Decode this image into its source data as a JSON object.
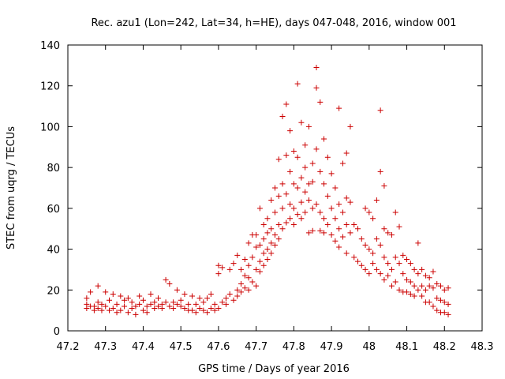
{
  "chart_data": {
    "type": "scatter",
    "title": "Rec. azu1 (Lon=242, Lat=34, h=HE), days 047-048, 2016, window 001",
    "xlabel": "GPS time / Days of year 2016",
    "ylabel": "STEC from uqrg / TECUs",
    "xlim": [
      47.2,
      48.3
    ],
    "ylim": [
      0,
      140
    ],
    "xticks": [
      "47.2",
      "47.3",
      "47.4",
      "47.5",
      "47.6",
      "47.7",
      "47.8",
      "47.9",
      "48",
      "48.1",
      "48.2",
      "48.3"
    ],
    "yticks": [
      "0",
      "20",
      "40",
      "60",
      "80",
      "100",
      "120",
      "140"
    ],
    "grid": false,
    "marker": "plus",
    "color": "#cc0000",
    "points": [
      [
        47.25,
        16
      ],
      [
        47.25,
        13
      ],
      [
        47.25,
        11
      ],
      [
        47.26,
        12
      ],
      [
        47.26,
        19
      ],
      [
        47.27,
        12
      ],
      [
        47.27,
        10
      ],
      [
        47.28,
        22
      ],
      [
        47.28,
        14
      ],
      [
        47.28,
        11
      ],
      [
        47.29,
        10
      ],
      [
        47.29,
        13
      ],
      [
        47.3,
        19
      ],
      [
        47.3,
        12
      ],
      [
        47.31,
        10
      ],
      [
        47.31,
        15
      ],
      [
        47.32,
        18
      ],
      [
        47.32,
        11
      ],
      [
        47.33,
        9
      ],
      [
        47.33,
        13
      ],
      [
        47.34,
        17
      ],
      [
        47.34,
        10
      ],
      [
        47.35,
        15
      ],
      [
        47.35,
        12
      ],
      [
        47.36,
        9
      ],
      [
        47.36,
        16
      ],
      [
        47.37,
        11
      ],
      [
        47.37,
        14
      ],
      [
        47.38,
        8
      ],
      [
        47.38,
        12
      ],
      [
        47.39,
        17
      ],
      [
        47.39,
        13
      ],
      [
        47.4,
        10
      ],
      [
        47.4,
        15
      ],
      [
        47.41,
        12
      ],
      [
        47.41,
        9
      ],
      [
        47.42,
        18
      ],
      [
        47.42,
        13
      ],
      [
        47.43,
        11
      ],
      [
        47.43,
        14
      ],
      [
        47.44,
        12
      ],
      [
        47.44,
        16
      ],
      [
        47.45,
        13
      ],
      [
        47.45,
        11
      ],
      [
        47.46,
        25
      ],
      [
        47.46,
        14
      ],
      [
        47.47,
        12
      ],
      [
        47.47,
        23
      ],
      [
        47.48,
        14
      ],
      [
        47.48,
        11
      ],
      [
        47.49,
        20
      ],
      [
        47.49,
        13
      ],
      [
        47.5,
        12
      ],
      [
        47.5,
        15
      ],
      [
        47.51,
        11
      ],
      [
        47.51,
        18
      ],
      [
        47.52,
        10
      ],
      [
        47.52,
        13
      ],
      [
        47.53,
        17
      ],
      [
        47.53,
        10
      ],
      [
        47.54,
        13
      ],
      [
        47.54,
        9
      ],
      [
        47.55,
        16
      ],
      [
        47.55,
        11
      ],
      [
        47.56,
        10
      ],
      [
        47.56,
        14
      ],
      [
        47.57,
        9
      ],
      [
        47.57,
        16
      ],
      [
        47.58,
        11
      ],
      [
        47.58,
        18
      ],
      [
        47.59,
        10
      ],
      [
        47.59,
        13
      ],
      [
        47.6,
        32
      ],
      [
        47.6,
        28
      ],
      [
        47.6,
        11
      ],
      [
        47.61,
        14
      ],
      [
        47.61,
        31
      ],
      [
        47.62,
        16
      ],
      [
        47.62,
        13
      ],
      [
        47.63,
        30
      ],
      [
        47.63,
        18
      ],
      [
        47.64,
        15
      ],
      [
        47.64,
        33
      ],
      [
        47.65,
        20
      ],
      [
        47.65,
        17
      ],
      [
        47.65,
        37
      ],
      [
        47.66,
        23
      ],
      [
        47.66,
        19
      ],
      [
        47.66,
        30
      ],
      [
        47.67,
        27
      ],
      [
        47.67,
        21
      ],
      [
        47.67,
        35
      ],
      [
        47.68,
        32
      ],
      [
        47.68,
        26
      ],
      [
        47.68,
        20
      ],
      [
        47.68,
        43
      ],
      [
        47.69,
        36
      ],
      [
        47.69,
        24
      ],
      [
        47.69,
        47
      ],
      [
        47.7,
        41
      ],
      [
        47.7,
        30
      ],
      [
        47.7,
        22
      ],
      [
        47.7,
        47
      ],
      [
        47.71,
        60
      ],
      [
        47.71,
        42
      ],
      [
        47.71,
        34
      ],
      [
        47.71,
        29
      ],
      [
        47.72,
        52
      ],
      [
        47.72,
        45
      ],
      [
        47.72,
        38
      ],
      [
        47.72,
        32
      ],
      [
        47.73,
        55
      ],
      [
        47.73,
        48
      ],
      [
        47.73,
        40
      ],
      [
        47.73,
        35
      ],
      [
        47.74,
        64
      ],
      [
        47.74,
        50
      ],
      [
        47.74,
        43
      ],
      [
        47.74,
        38
      ],
      [
        47.75,
        70
      ],
      [
        47.75,
        58
      ],
      [
        47.75,
        47
      ],
      [
        47.75,
        42
      ],
      [
        47.76,
        84
      ],
      [
        47.76,
        66
      ],
      [
        47.76,
        52
      ],
      [
        47.76,
        45
      ],
      [
        47.77,
        105
      ],
      [
        47.77,
        72
      ],
      [
        47.77,
        60
      ],
      [
        47.77,
        50
      ],
      [
        47.78,
        111
      ],
      [
        47.78,
        86
      ],
      [
        47.78,
        67
      ],
      [
        47.78,
        53
      ],
      [
        47.79,
        98
      ],
      [
        47.79,
        78
      ],
      [
        47.79,
        62
      ],
      [
        47.79,
        55
      ],
      [
        47.8,
        88
      ],
      [
        47.8,
        72
      ],
      [
        47.8,
        60
      ],
      [
        47.8,
        52
      ],
      [
        47.81,
        121
      ],
      [
        47.81,
        85
      ],
      [
        47.81,
        70
      ],
      [
        47.81,
        57
      ],
      [
        47.82,
        102
      ],
      [
        47.82,
        75
      ],
      [
        47.82,
        63
      ],
      [
        47.82,
        55
      ],
      [
        47.83,
        91
      ],
      [
        47.83,
        80
      ],
      [
        47.83,
        68
      ],
      [
        47.83,
        58
      ],
      [
        47.84,
        100
      ],
      [
        47.84,
        72
      ],
      [
        47.84,
        64
      ],
      [
        47.84,
        48
      ],
      [
        47.85,
        82
      ],
      [
        47.85,
        73
      ],
      [
        47.85,
        60
      ],
      [
        47.85,
        49
      ],
      [
        47.86,
        129
      ],
      [
        47.86,
        119
      ],
      [
        47.86,
        89
      ],
      [
        47.86,
        62
      ],
      [
        47.87,
        112
      ],
      [
        47.87,
        78
      ],
      [
        47.87,
        58
      ],
      [
        47.87,
        49
      ],
      [
        47.88,
        94
      ],
      [
        47.88,
        72
      ],
      [
        47.88,
        55
      ],
      [
        47.88,
        48
      ],
      [
        47.89,
        85
      ],
      [
        47.89,
        66
      ],
      [
        47.89,
        52
      ],
      [
        47.9,
        77
      ],
      [
        47.9,
        60
      ],
      [
        47.9,
        47
      ],
      [
        47.91,
        70
      ],
      [
        47.91,
        55
      ],
      [
        47.91,
        44
      ],
      [
        47.92,
        109
      ],
      [
        47.92,
        62
      ],
      [
        47.92,
        50
      ],
      [
        47.92,
        41
      ],
      [
        47.93,
        82
      ],
      [
        47.93,
        58
      ],
      [
        47.93,
        46
      ],
      [
        47.94,
        87
      ],
      [
        47.94,
        65
      ],
      [
        47.94,
        52
      ],
      [
        47.94,
        38
      ],
      [
        47.95,
        100
      ],
      [
        47.95,
        63
      ],
      [
        47.95,
        48
      ],
      [
        47.96,
        52
      ],
      [
        47.96,
        36
      ],
      [
        47.97,
        50
      ],
      [
        47.97,
        34
      ],
      [
        47.98,
        45
      ],
      [
        47.98,
        32
      ],
      [
        47.99,
        60
      ],
      [
        47.99,
        42
      ],
      [
        47.99,
        30
      ],
      [
        48.0,
        58
      ],
      [
        48.0,
        40
      ],
      [
        48.0,
        28
      ],
      [
        48.01,
        55
      ],
      [
        48.01,
        38
      ],
      [
        48.01,
        33
      ],
      [
        48.02,
        64
      ],
      [
        48.02,
        45
      ],
      [
        48.02,
        30
      ],
      [
        48.03,
        108
      ],
      [
        48.03,
        78
      ],
      [
        48.03,
        42
      ],
      [
        48.03,
        28
      ],
      [
        48.04,
        71
      ],
      [
        48.04,
        50
      ],
      [
        48.04,
        36
      ],
      [
        48.04,
        25
      ],
      [
        48.05,
        48
      ],
      [
        48.05,
        33
      ],
      [
        48.05,
        27
      ],
      [
        48.06,
        47
      ],
      [
        48.06,
        30
      ],
      [
        48.06,
        22
      ],
      [
        48.07,
        58
      ],
      [
        48.07,
        36
      ],
      [
        48.07,
        24
      ],
      [
        48.08,
        51
      ],
      [
        48.08,
        33
      ],
      [
        48.08,
        20
      ],
      [
        48.09,
        37
      ],
      [
        48.09,
        28
      ],
      [
        48.09,
        19
      ],
      [
        48.1,
        35
      ],
      [
        48.1,
        25
      ],
      [
        48.1,
        19
      ],
      [
        48.11,
        33
      ],
      [
        48.11,
        24
      ],
      [
        48.11,
        18
      ],
      [
        48.12,
        30
      ],
      [
        48.12,
        22
      ],
      [
        48.12,
        17
      ],
      [
        48.13,
        43
      ],
      [
        48.13,
        28
      ],
      [
        48.13,
        20
      ],
      [
        48.14,
        30
      ],
      [
        48.14,
        22
      ],
      [
        48.14,
        17
      ],
      [
        48.15,
        27
      ],
      [
        48.15,
        20
      ],
      [
        48.15,
        14
      ],
      [
        48.16,
        26
      ],
      [
        48.16,
        22
      ],
      [
        48.16,
        14
      ],
      [
        48.17,
        29
      ],
      [
        48.17,
        21
      ],
      [
        48.17,
        12
      ],
      [
        48.18,
        23
      ],
      [
        48.18,
        16
      ],
      [
        48.18,
        10
      ],
      [
        48.19,
        22
      ],
      [
        48.19,
        15
      ],
      [
        48.19,
        9
      ],
      [
        48.2,
        20
      ],
      [
        48.2,
        14
      ],
      [
        48.2,
        9
      ],
      [
        48.21,
        21
      ],
      [
        48.21,
        13
      ],
      [
        48.21,
        8
      ]
    ]
  }
}
